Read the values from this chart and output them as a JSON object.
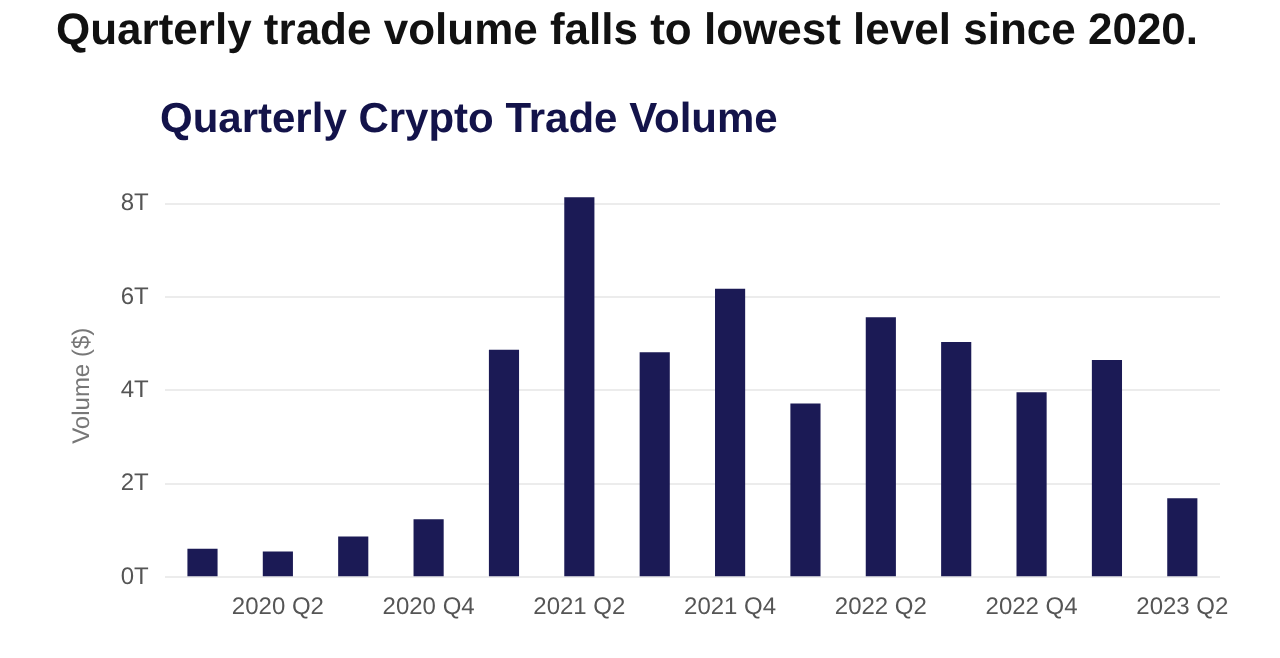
{
  "chart_data": {
    "type": "bar",
    "title": "Quarterly trade volume falls to lowest level since 2020.",
    "subtitle": "Quarterly Crypto Trade Volume",
    "ylabel": "Volume ($)",
    "categories": [
      null,
      "2020 Q2",
      null,
      "2020 Q4",
      null,
      "2021 Q2",
      null,
      "2021 Q4",
      null,
      "2022 Q2",
      null,
      "2022 Q4",
      null,
      "2023 Q2"
    ],
    "values": [
      0.61,
      0.55,
      0.87,
      1.24,
      4.87,
      8.14,
      4.82,
      6.18,
      3.72,
      5.57,
      5.04,
      3.96,
      4.65,
      1.69
    ],
    "color": "#1b1a55",
    "ylim": [
      0,
      8.2
    ],
    "yticks": [
      {
        "value": 0,
        "label": "0T"
      },
      {
        "value": 2,
        "label": "2T"
      },
      {
        "value": 4,
        "label": "4T"
      },
      {
        "value": 6,
        "label": "6T"
      },
      {
        "value": 8,
        "label": "8T"
      }
    ],
    "grid": "y"
  }
}
